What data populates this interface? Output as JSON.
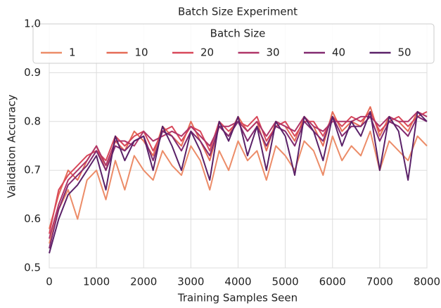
{
  "chart_data": {
    "type": "line",
    "title": "Batch Size Experiment",
    "x_label": "Training Samples Seen",
    "y_label": "Validation Accuracy",
    "legend_title": "Batch Size",
    "legend": "upper center",
    "grid": true,
    "x": [
      0,
      200,
      400,
      600,
      800,
      1000,
      1200,
      1400,
      1600,
      1800,
      2000,
      2200,
      2400,
      2600,
      2800,
      3000,
      3200,
      3400,
      3600,
      3800,
      4000,
      4200,
      4400,
      4600,
      4800,
      5000,
      5200,
      5400,
      5600,
      5800,
      6000,
      6200,
      6400,
      6600,
      6800,
      7000,
      7200,
      7400,
      7600,
      7800,
      8000
    ],
    "xlim": [
      0,
      8000
    ],
    "xticks": [
      0,
      1000,
      2000,
      3000,
      4000,
      5000,
      6000,
      7000,
      8000
    ],
    "ylim": [
      0.5,
      1
    ],
    "yticks": [
      0.5,
      0.6,
      0.7,
      0.8,
      0.9,
      {
        "value": 1,
        "label": "1.0"
      }
    ],
    "series": [
      {
        "name": "1",
        "color": "#ec8c68",
        "values": [
          0.55,
          0.62,
          0.66,
          0.6,
          0.68,
          0.7,
          0.64,
          0.72,
          0.66,
          0.73,
          0.7,
          0.68,
          0.74,
          0.71,
          0.69,
          0.75,
          0.72,
          0.66,
          0.74,
          0.7,
          0.76,
          0.72,
          0.74,
          0.68,
          0.75,
          0.73,
          0.7,
          0.76,
          0.74,
          0.69,
          0.77,
          0.72,
          0.75,
          0.73,
          0.78,
          0.7,
          0.76,
          0.74,
          0.72,
          0.77,
          0.75
        ]
      },
      {
        "name": "10",
        "color": "#e56b56",
        "values": [
          0.58,
          0.65,
          0.7,
          0.68,
          0.72,
          0.75,
          0.7,
          0.76,
          0.74,
          0.78,
          0.76,
          0.73,
          0.79,
          0.77,
          0.75,
          0.8,
          0.76,
          0.72,
          0.79,
          0.77,
          0.81,
          0.78,
          0.8,
          0.74,
          0.8,
          0.79,
          0.76,
          0.81,
          0.79,
          0.75,
          0.82,
          0.78,
          0.8,
          0.79,
          0.83,
          0.77,
          0.81,
          0.8,
          0.78,
          0.82,
          0.81
        ]
      },
      {
        "name": "20",
        "color": "#d8485a",
        "values": [
          0.57,
          0.66,
          0.69,
          0.71,
          0.73,
          0.74,
          0.72,
          0.77,
          0.75,
          0.77,
          0.78,
          0.74,
          0.78,
          0.79,
          0.76,
          0.79,
          0.78,
          0.74,
          0.8,
          0.78,
          0.8,
          0.79,
          0.81,
          0.76,
          0.79,
          0.8,
          0.77,
          0.8,
          0.8,
          0.77,
          0.81,
          0.79,
          0.81,
          0.8,
          0.82,
          0.78,
          0.8,
          0.81,
          0.79,
          0.81,
          0.82
        ]
      },
      {
        "name": "30",
        "color": "#b03568",
        "values": [
          0.56,
          0.63,
          0.68,
          0.7,
          0.72,
          0.75,
          0.71,
          0.76,
          0.76,
          0.75,
          0.78,
          0.76,
          0.77,
          0.78,
          0.77,
          0.79,
          0.77,
          0.75,
          0.79,
          0.79,
          0.8,
          0.78,
          0.8,
          0.77,
          0.8,
          0.79,
          0.78,
          0.81,
          0.79,
          0.78,
          0.8,
          0.8,
          0.8,
          0.81,
          0.81,
          0.79,
          0.81,
          0.8,
          0.8,
          0.82,
          0.81
        ]
      },
      {
        "name": "40",
        "color": "#822a70",
        "values": [
          0.54,
          0.62,
          0.67,
          0.69,
          0.71,
          0.74,
          0.7,
          0.75,
          0.74,
          0.76,
          0.77,
          0.72,
          0.78,
          0.77,
          0.74,
          0.78,
          0.76,
          0.73,
          0.79,
          0.77,
          0.8,
          0.76,
          0.79,
          0.75,
          0.79,
          0.78,
          0.75,
          0.8,
          0.78,
          0.76,
          0.81,
          0.77,
          0.79,
          0.79,
          0.81,
          0.76,
          0.8,
          0.79,
          0.77,
          0.81,
          0.8
        ]
      },
      {
        "name": "50",
        "color": "#5a2168",
        "values": [
          0.53,
          0.6,
          0.65,
          0.67,
          0.7,
          0.73,
          0.66,
          0.77,
          0.72,
          0.76,
          0.77,
          0.7,
          0.79,
          0.75,
          0.7,
          0.78,
          0.74,
          0.68,
          0.8,
          0.76,
          0.81,
          0.73,
          0.79,
          0.7,
          0.8,
          0.77,
          0.69,
          0.81,
          0.78,
          0.72,
          0.81,
          0.75,
          0.8,
          0.77,
          0.82,
          0.7,
          0.81,
          0.78,
          0.68,
          0.82,
          0.8
        ]
      }
    ]
  }
}
